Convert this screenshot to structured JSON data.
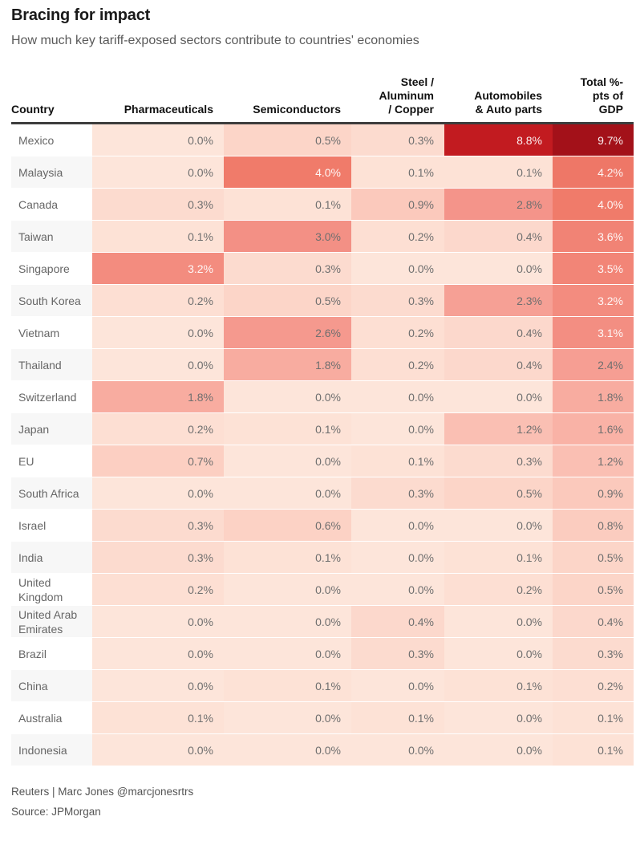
{
  "title": "Bracing for impact",
  "subtitle": "How much key tariff-exposed sectors contribute to countries' economies",
  "footer": {
    "credit": "Reuters | Marc Jones @marcjonesrtrs",
    "source": "Source: JPMorgan"
  },
  "chart_data": {
    "type": "heatmap",
    "title": "Bracing for impact",
    "subtitle": "How much key tariff-exposed sectors contribute to countries' economies",
    "value_format": "one_decimal_percent",
    "header_display": [
      "Country",
      "Pharmaceuticals",
      "Semiconductors",
      "Steel /\nAluminum\n/ Copper",
      "Automobiles\n& Auto parts",
      "Total %-\npts of\nGDP"
    ],
    "columns": [
      "Pharmaceuticals",
      "Semiconductors",
      "Steel / Aluminum / Copper",
      "Automobiles & Auto parts",
      "Total %-pts of GDP"
    ],
    "rows": [
      {
        "country": "Mexico",
        "values": [
          0.0,
          0.5,
          0.3,
          8.8,
          9.7
        ]
      },
      {
        "country": "Malaysia",
        "values": [
          0.0,
          4.0,
          0.1,
          0.1,
          4.2
        ]
      },
      {
        "country": "Canada",
        "values": [
          0.3,
          0.1,
          0.9,
          2.8,
          4.0
        ]
      },
      {
        "country": "Taiwan",
        "values": [
          0.1,
          3.0,
          0.2,
          0.4,
          3.6
        ]
      },
      {
        "country": "Singapore",
        "values": [
          3.2,
          0.3,
          0.0,
          0.0,
          3.5
        ]
      },
      {
        "country": "South Korea",
        "values": [
          0.2,
          0.5,
          0.3,
          2.3,
          3.2
        ]
      },
      {
        "country": "Vietnam",
        "values": [
          0.0,
          2.6,
          0.2,
          0.4,
          3.1
        ]
      },
      {
        "country": "Thailand",
        "values": [
          0.0,
          1.8,
          0.2,
          0.4,
          2.4
        ]
      },
      {
        "country": "Switzerland",
        "values": [
          1.8,
          0.0,
          0.0,
          0.0,
          1.8
        ]
      },
      {
        "country": "Japan",
        "values": [
          0.2,
          0.1,
          0.0,
          1.2,
          1.6
        ]
      },
      {
        "country": "EU",
        "values": [
          0.7,
          0.0,
          0.1,
          0.3,
          1.2
        ]
      },
      {
        "country": "South Africa",
        "values": [
          0.0,
          0.0,
          0.3,
          0.5,
          0.9
        ]
      },
      {
        "country": "Israel",
        "values": [
          0.3,
          0.6,
          0.0,
          0.0,
          0.8
        ]
      },
      {
        "country": "India",
        "values": [
          0.3,
          0.1,
          0.0,
          0.1,
          0.5
        ]
      },
      {
        "country": "United Kingdom",
        "values": [
          0.2,
          0.0,
          0.0,
          0.2,
          0.5
        ]
      },
      {
        "country": "United Arab Emirates",
        "values": [
          0.0,
          0.0,
          0.4,
          0.0,
          0.4
        ]
      },
      {
        "country": "Brazil",
        "values": [
          0.0,
          0.0,
          0.3,
          0.0,
          0.3
        ]
      },
      {
        "country": "China",
        "values": [
          0.0,
          0.1,
          0.0,
          0.1,
          0.2
        ]
      },
      {
        "country": "Australia",
        "values": [
          0.1,
          0.0,
          0.1,
          0.0,
          0.1
        ]
      },
      {
        "country": "Indonesia",
        "values": [
          0.0,
          0.0,
          0.0,
          0.0,
          0.1
        ]
      }
    ],
    "color_scale": {
      "stops": [
        [
          0.0,
          "#fde5da"
        ],
        [
          0.5,
          "#fcd5c8"
        ],
        [
          0.9,
          "#fbc9bc"
        ],
        [
          1.8,
          "#f8aca0"
        ],
        [
          2.8,
          "#f4948a"
        ],
        [
          4.0,
          "#f07b6a"
        ],
        [
          8.8,
          "#c21b20"
        ],
        [
          9.7,
          "#a31119"
        ]
      ],
      "white_text_min": 3.1
    },
    "layout": {
      "header_rule_color": "#3d3d3d",
      "label_bg_even": "#ffffff",
      "label_bg_odd": "#f7f7f7",
      "legend": "none",
      "grid": "off"
    }
  }
}
